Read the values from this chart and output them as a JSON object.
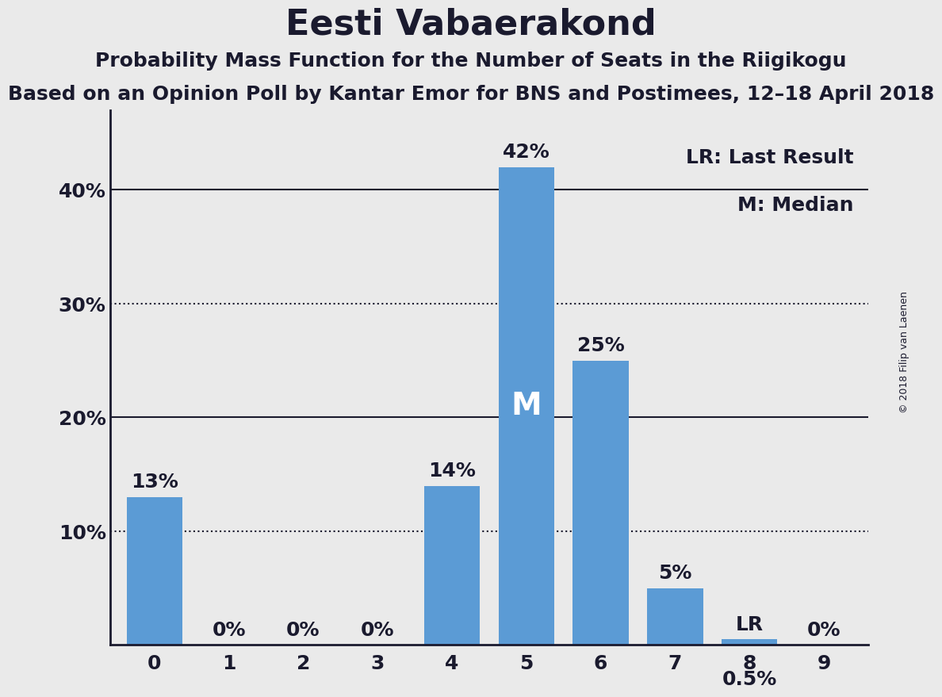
{
  "title": "Eesti Vabaerakond",
  "subtitle1": "Probability Mass Function for the Number of Seats in the Riigikogu",
  "subtitle2": "Based on an Opinion Poll by Kantar Emor for BNS and Postimees, 12–18 April 2018",
  "copyright": "© 2018 Filip van Laenen",
  "categories": [
    0,
    1,
    2,
    3,
    4,
    5,
    6,
    7,
    8,
    9
  ],
  "values": [
    0.13,
    0.0,
    0.0,
    0.0,
    0.14,
    0.42,
    0.25,
    0.05,
    0.005,
    0.0
  ],
  "labels": [
    "13%",
    "0%",
    "0%",
    "0%",
    "14%",
    "42%",
    "25%",
    "5%",
    "0.5%",
    "0%"
  ],
  "bar_color": "#5b9bd5",
  "median_bar": 5,
  "last_result_bar": 8,
  "median_label": "M",
  "lr_label": "LR",
  "background_color": "#eaeaea",
  "plot_background_color": "#eaeaea",
  "yticks": [
    0,
    0.1,
    0.2,
    0.3,
    0.4
  ],
  "ytick_labels": [
    "",
    "10%",
    "20%",
    "30%",
    "40%"
  ],
  "ylim": [
    0,
    0.47
  ],
  "dotted_line_1": 0.3,
  "dotted_line_2": 0.1,
  "title_fontsize": 32,
  "subtitle_fontsize": 18,
  "label_fontsize": 16,
  "tick_fontsize": 18,
  "legend_fontsize": 18,
  "bar_label_fontsize": 18,
  "axis_color": "#1a1a2e",
  "text_color": "#1a1a2e"
}
